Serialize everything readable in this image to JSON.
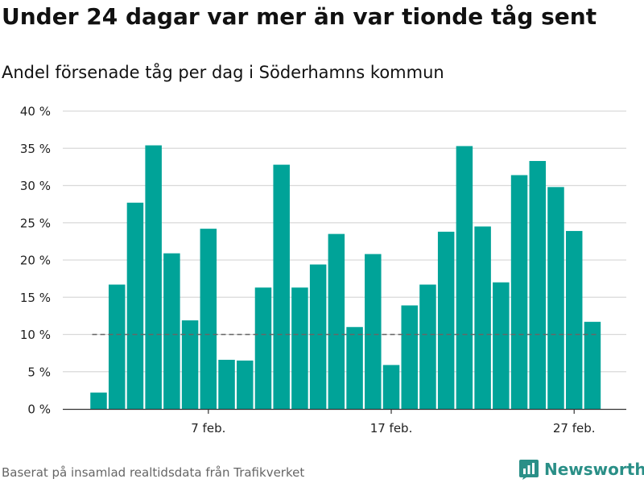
{
  "title": "Under 24 dagar var mer än var tionde tåg sent",
  "subtitle": "Andel försenade tåg per dag i Söderhamns kommun",
  "footer": {
    "source": "Baserat på insamlad realtidsdata från Trafikverket",
    "brand": "Newsworthy",
    "brand_icon": "newsworthy-logo-icon"
  },
  "colors": {
    "bar": "#00a398",
    "grid": "#d9d9d9",
    "reference_line": "#666666",
    "brand": "#2a8f87"
  },
  "chart_data": {
    "type": "bar",
    "title": "Under 24 dagar var mer än var tionde tåg sent",
    "subtitle": "Andel försenade tåg per dag i Söderhamns kommun",
    "x_start": "1 feb.",
    "categories": [
      "1 feb.",
      "2 feb.",
      "3 feb.",
      "4 feb.",
      "5 feb.",
      "6 feb.",
      "7 feb.",
      "8 feb.",
      "9 feb.",
      "10 feb.",
      "11 feb.",
      "12 feb.",
      "13 feb.",
      "14 feb.",
      "15 feb.",
      "16 feb.",
      "17 feb.",
      "18 feb.",
      "19 feb.",
      "20 feb.",
      "21 feb.",
      "22 feb.",
      "23 feb.",
      "24 feb.",
      "25 feb.",
      "26 feb.",
      "27 feb.",
      "28 feb."
    ],
    "values": [
      2.2,
      16.7,
      27.7,
      35.4,
      20.9,
      11.9,
      24.2,
      6.6,
      6.5,
      16.3,
      32.8,
      16.3,
      19.4,
      23.5,
      11.0,
      20.8,
      5.9,
      13.9,
      16.7,
      23.8,
      35.3,
      24.5,
      17.0,
      31.4,
      33.3,
      29.8,
      23.9,
      11.7
    ],
    "x_tick_labels": [
      "7 feb.",
      "17 feb.",
      "27 feb."
    ],
    "x_tick_indices": [
      6,
      16,
      26
    ],
    "y_ticks": [
      0,
      5,
      10,
      15,
      20,
      25,
      30,
      35,
      40
    ],
    "y_tick_labels": [
      "0 %",
      "5 %",
      "10 %",
      "15 %",
      "20 %",
      "25 %",
      "30 %",
      "35 %",
      "40 %"
    ],
    "ylim": [
      0,
      40
    ],
    "reference_line": 10,
    "grid": true,
    "legend": "none",
    "xlabel": "",
    "ylabel": ""
  }
}
